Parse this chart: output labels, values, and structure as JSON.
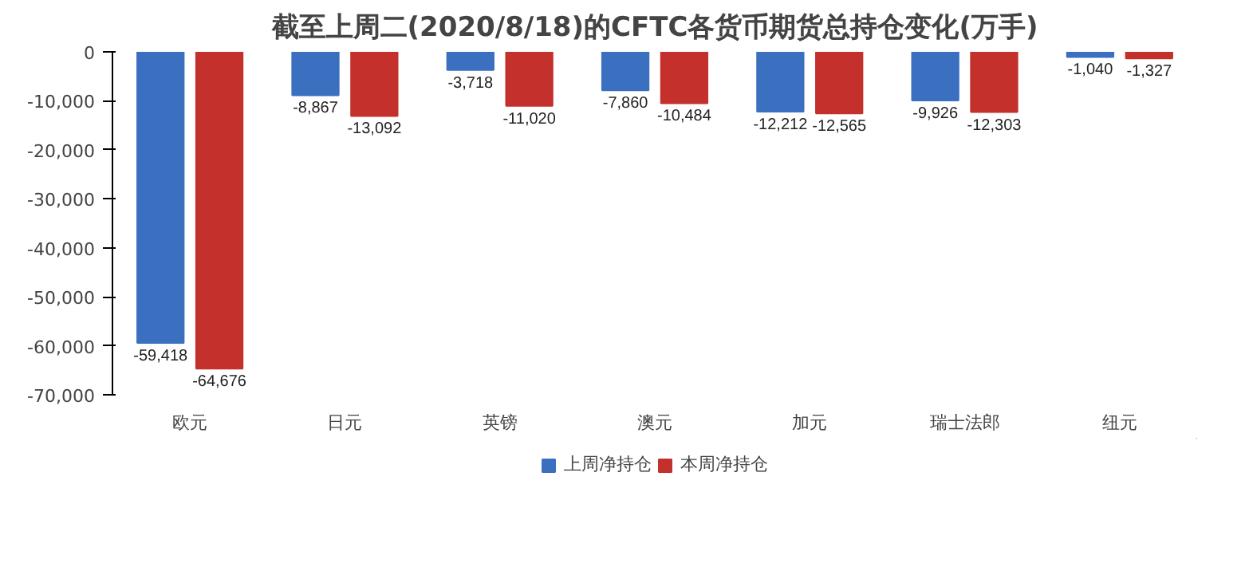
{
  "chart_data": {
    "type": "bar",
    "title": "截至上周二(2020/8/18)的CFTC各货币期货总持仓变化(万手)",
    "categories": [
      "欧元",
      "日元",
      "英镑",
      "澳元",
      "加元",
      "瑞士法郎",
      "纽元"
    ],
    "series": [
      {
        "name": "上周净持仓",
        "color": "#3b6fc0",
        "values": [
          -59418,
          -8867,
          -3718,
          -7860,
          -12212,
          -9926,
          -1040
        ],
        "value_labels": [
          "-59,418",
          "-8,867",
          "-3,718",
          "-7,860",
          "-12,212",
          "-9,926",
          "-1,040"
        ]
      },
      {
        "name": "本周净持仓",
        "color": "#c4302b",
        "values": [
          -64676,
          -13092,
          -11020,
          -10484,
          -12565,
          -12303,
          -1327
        ],
        "value_labels": [
          "-64,676",
          "-13,092",
          "-11,020",
          "-10,484",
          "-12,565",
          "-12,303",
          "-1,327"
        ]
      }
    ],
    "ylim": [
      -70000,
      0
    ],
    "yticks": [
      {
        "value": -70000,
        "label": "-70,000"
      },
      {
        "value": -60000,
        "label": "-60,000"
      },
      {
        "value": -50000,
        "label": "-50,000"
      },
      {
        "value": -40000,
        "label": "-40,000"
      },
      {
        "value": -30000,
        "label": "-30,000"
      },
      {
        "value": -20000,
        "label": "-20,000"
      },
      {
        "value": -10000,
        "label": "-10,000"
      },
      0
    ],
    "grid": false,
    "legend": "bottom"
  }
}
